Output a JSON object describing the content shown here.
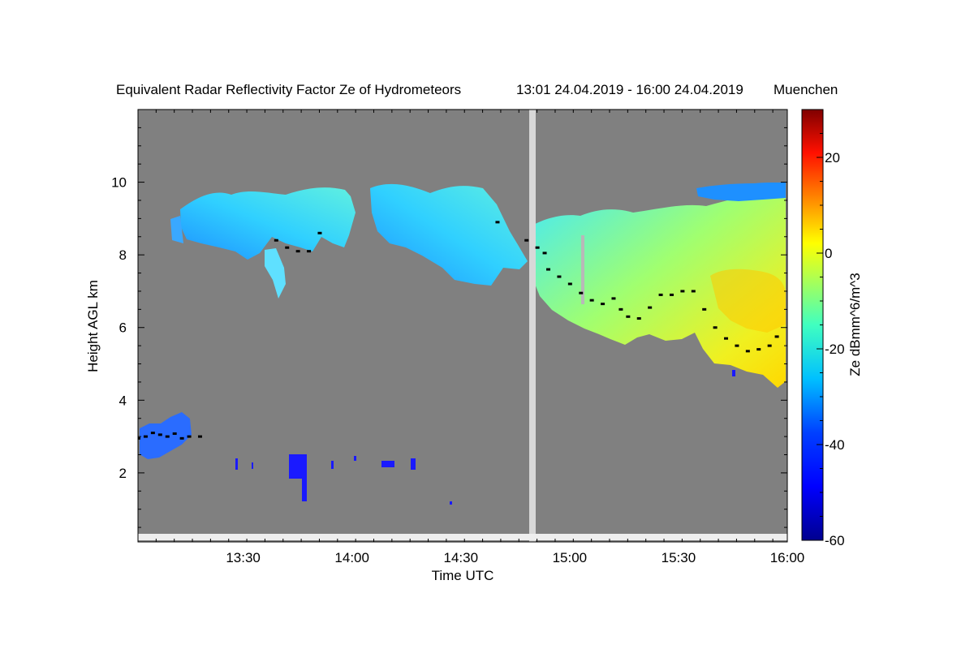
{
  "chart_data": {
    "type": "heatmap",
    "title": "Equivalent Radar Reflectivity Factor Ze of Hydrometeors",
    "time_range_text": "13:01 24.04.2019 - 16:00 24.04.2019",
    "location": "Muenchen",
    "xlabel": "Time UTC",
    "ylabel": "Height AGL km",
    "colorbar_label": "Ze dBmm^6/m^3",
    "x_range_min": [
      781,
      960
    ],
    "x_tick_values_min": [
      810,
      840,
      870,
      900,
      930,
      960
    ],
    "x_tick_labels": [
      "13:30",
      "14:00",
      "14:30",
      "15:00",
      "15:30",
      "16:00"
    ],
    "ylim": [
      0.1,
      12
    ],
    "y_tick_values": [
      2,
      4,
      6,
      8,
      10
    ],
    "y_tick_labels": [
      "2",
      "4",
      "6",
      "8",
      "10"
    ],
    "colorbar_range": [
      -60,
      30
    ],
    "colorbar_tick_values": [
      -60,
      -40,
      -20,
      0,
      20
    ],
    "colorbar_tick_labels": [
      "-60",
      "-40",
      "-20",
      "0",
      "20"
    ],
    "no_data_color": "#808080",
    "colormap": [
      "#00008f",
      "#0000ff",
      "#0080ff",
      "#00ffff",
      "#80ff80",
      "#ffff00",
      "#ff8000",
      "#ff0000",
      "#800000"
    ],
    "cloud_base_line_color": "#000000",
    "cloud_base_km": [
      {
        "t": 781,
        "h": 2.95
      },
      {
        "t": 783,
        "h": 3.0
      },
      {
        "t": 785,
        "h": 3.1
      },
      {
        "t": 787,
        "h": 3.05
      },
      {
        "t": 789,
        "h": 3.0
      },
      {
        "t": 791,
        "h": 3.08
      },
      {
        "t": 793,
        "h": 2.95
      },
      {
        "t": 795,
        "h": 3.0
      },
      {
        "t": 798,
        "h": 3.0
      },
      {
        "t": 819,
        "h": 8.4
      },
      {
        "t": 822,
        "h": 8.2
      },
      {
        "t": 825,
        "h": 8.1
      },
      {
        "t": 828,
        "h": 8.1
      },
      {
        "t": 831,
        "h": 8.6
      },
      {
        "t": 880,
        "h": 8.9
      },
      {
        "t": 888,
        "h": 8.4
      },
      {
        "t": 891,
        "h": 8.2
      },
      {
        "t": 893,
        "h": 8.05
      },
      {
        "t": 894,
        "h": 7.6
      },
      {
        "t": 897,
        "h": 7.4
      },
      {
        "t": 900,
        "h": 7.2
      },
      {
        "t": 903,
        "h": 6.95
      },
      {
        "t": 906,
        "h": 6.75
      },
      {
        "t": 909,
        "h": 6.65
      },
      {
        "t": 912,
        "h": 6.8
      },
      {
        "t": 914,
        "h": 6.5
      },
      {
        "t": 916,
        "h": 6.3
      },
      {
        "t": 919,
        "h": 6.25
      },
      {
        "t": 922,
        "h": 6.55
      },
      {
        "t": 925,
        "h": 6.9
      },
      {
        "t": 928,
        "h": 6.9
      },
      {
        "t": 931,
        "h": 7.0
      },
      {
        "t": 934,
        "h": 7.0
      },
      {
        "t": 937,
        "h": 6.5
      },
      {
        "t": 940,
        "h": 6.0
      },
      {
        "t": 943,
        "h": 5.7
      },
      {
        "t": 946,
        "h": 5.5
      },
      {
        "t": 949,
        "h": 5.35
      },
      {
        "t": 952,
        "h": 5.4
      },
      {
        "t": 955,
        "h": 5.5
      },
      {
        "t": 957,
        "h": 5.75
      }
    ]
  }
}
